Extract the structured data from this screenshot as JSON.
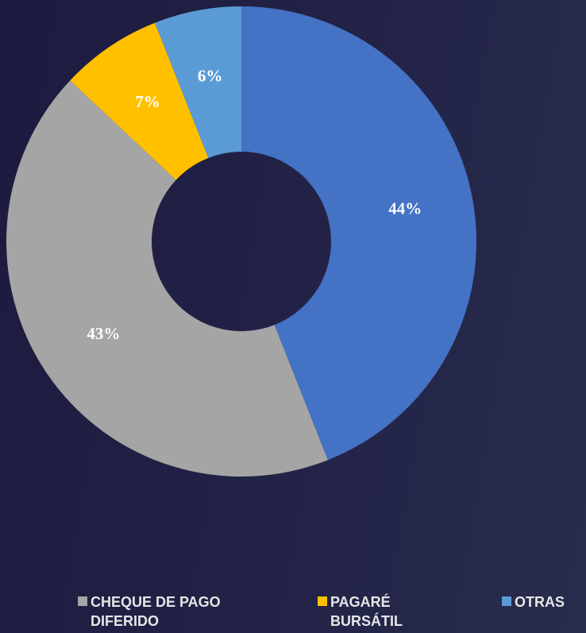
{
  "chart_data": {
    "type": "donut",
    "categories": [
      null,
      "CHEQUE DE PAGO DIFERIDO",
      "PAGARÉ BURSÁTIL",
      "OTRAS"
    ],
    "values": [
      44,
      43,
      7,
      6
    ],
    "value_labels": [
      "44%",
      "43%",
      "7%",
      "6%"
    ],
    "colors": [
      "#4472c4",
      "#a5a5a5",
      "#ffc000",
      "#5b9bd5"
    ],
    "legend": "bottom"
  }
}
